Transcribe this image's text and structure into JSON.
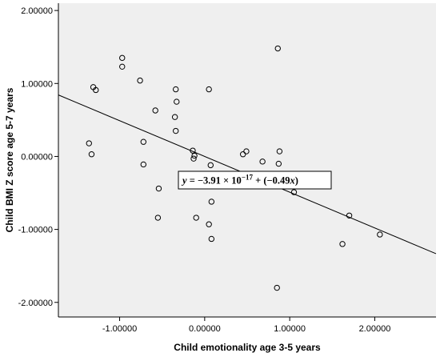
{
  "chart_data": {
    "type": "scatter",
    "xlabel": "Child emotionality age 3-5 years",
    "ylabel": "Child BMI Z score age 5-7 years",
    "xlim": [
      -1.72,
      2.72
    ],
    "ylim": [
      -2.2,
      2.1
    ],
    "x_ticks": [
      -1.0,
      0.0,
      1.0,
      2.0
    ],
    "x_tick_labels": [
      "-1.00000",
      "0.00000",
      "1.00000",
      "2.00000"
    ],
    "y_ticks": [
      2.0,
      1.0,
      0.0,
      -1.0,
      -2.0
    ],
    "y_tick_labels": [
      "2.00000",
      "1.00000",
      "0.00000",
      "-1.00000",
      "-2.00000"
    ],
    "grid": false,
    "legend": "none",
    "background_color": "#efefef",
    "point_style": "hollow-circle",
    "points": [
      {
        "x": -1.36,
        "y": 0.18
      },
      {
        "x": -1.33,
        "y": 0.03
      },
      {
        "x": -1.31,
        "y": 0.95
      },
      {
        "x": -1.28,
        "y": 0.91
      },
      {
        "x": -0.97,
        "y": 1.35
      },
      {
        "x": -0.97,
        "y": 1.23
      },
      {
        "x": -0.76,
        "y": 1.04
      },
      {
        "x": -0.72,
        "y": 0.2
      },
      {
        "x": -0.72,
        "y": -0.11
      },
      {
        "x": -0.58,
        "y": 0.63
      },
      {
        "x": -0.54,
        "y": -0.44
      },
      {
        "x": -0.55,
        "y": -0.84
      },
      {
        "x": -0.34,
        "y": 0.92
      },
      {
        "x": -0.33,
        "y": 0.75
      },
      {
        "x": -0.35,
        "y": 0.54
      },
      {
        "x": -0.34,
        "y": 0.35
      },
      {
        "x": -0.14,
        "y": 0.08
      },
      {
        "x": -0.12,
        "y": 0.01
      },
      {
        "x": -0.13,
        "y": -0.03
      },
      {
        "x": -0.1,
        "y": -0.84
      },
      {
        "x": 0.05,
        "y": 0.92
      },
      {
        "x": 0.07,
        "y": -0.12
      },
      {
        "x": 0.08,
        "y": -0.35
      },
      {
        "x": 0.08,
        "y": -0.62
      },
      {
        "x": 0.05,
        "y": -0.93
      },
      {
        "x": 0.08,
        "y": -1.13
      },
      {
        "x": 0.26,
        "y": -0.4
      },
      {
        "x": 0.45,
        "y": 0.03
      },
      {
        "x": 0.49,
        "y": 0.07
      },
      {
        "x": 0.68,
        "y": -0.07
      },
      {
        "x": 0.86,
        "y": 1.48
      },
      {
        "x": 0.88,
        "y": 0.07
      },
      {
        "x": 0.87,
        "y": -0.1
      },
      {
        "x": 1.05,
        "y": -0.49
      },
      {
        "x": 0.85,
        "y": -1.8
      },
      {
        "x": 1.62,
        "y": -1.2
      },
      {
        "x": 1.7,
        "y": -0.81
      },
      {
        "x": 2.06,
        "y": -1.07
      }
    ],
    "fit_line": {
      "intercept": 0.0,
      "slope": -0.49,
      "color": "#000000"
    },
    "annotation": {
      "label": "y = −3.91 × 10⁻¹⁷ + (−0.49x)",
      "intercept_text": "−3.91 × 10",
      "exponent": "−17",
      "slope_text": " + (−0.49"
    }
  }
}
